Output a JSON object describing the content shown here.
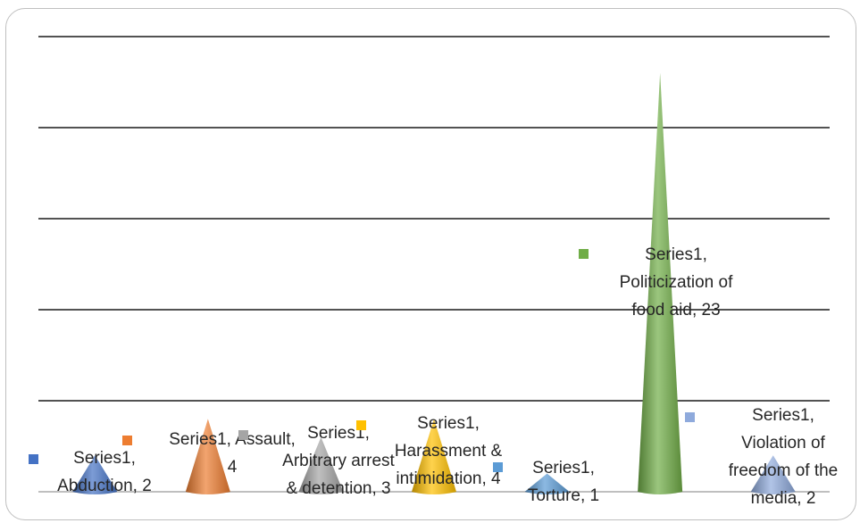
{
  "chart_data": {
    "type": "bar",
    "mark": "cone",
    "title": "",
    "xlabel": "",
    "ylabel": "",
    "ylim": [
      0,
      25
    ],
    "grid": true,
    "legend": "none",
    "categories": [
      "Abduction",
      "Assault",
      "Arbitrary arrest & detention",
      "Harassment & intimidation",
      "Torture",
      "Politicization of food aid",
      "Violation of freedom of the media"
    ],
    "series": [
      {
        "name": "Series1",
        "values": [
          2,
          4,
          3,
          4,
          1,
          23,
          2
        ],
        "colors": [
          "#4472C4",
          "#ED7D31",
          "#A5A5A5",
          "#FFC000",
          "#5B9BD5",
          "#70AD47",
          "#8FAADC"
        ]
      }
    ],
    "data_labels": [
      [
        "Series1,",
        "Abduction, 2"
      ],
      [
        "Series1, Assault,",
        "4"
      ],
      [
        "Series1,",
        "Arbitrary arrest",
        "& detention, 3"
      ],
      [
        "Series1,",
        "Harassment &",
        "intimidation, 4"
      ],
      [
        "Series1,",
        "Torture, 1"
      ],
      [
        "Series1,",
        "Politicization of",
        "food aid, 23"
      ],
      [
        "Series1,",
        "Violation of",
        "freedom of the",
        "media, 2"
      ]
    ]
  }
}
